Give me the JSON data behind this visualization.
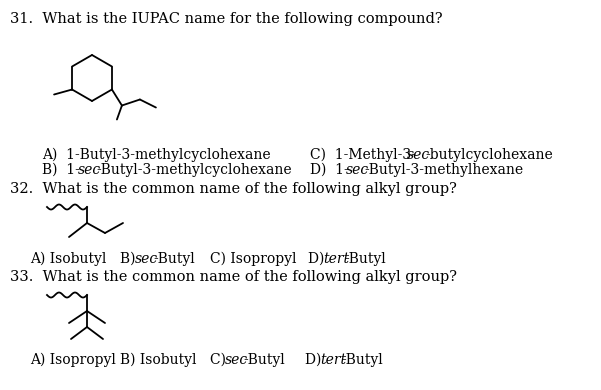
{
  "bg_color": "#ffffff",
  "q31_text": "31.  What is the IUPAC name for the following compound?",
  "q32_text": "32.  What is the common name of the following alkyl group?",
  "q33_text": "33.  What is the common name of the following alkyl group?",
  "font_size_q": 10.5,
  "font_size_ans": 10.0,
  "lw": 1.3
}
